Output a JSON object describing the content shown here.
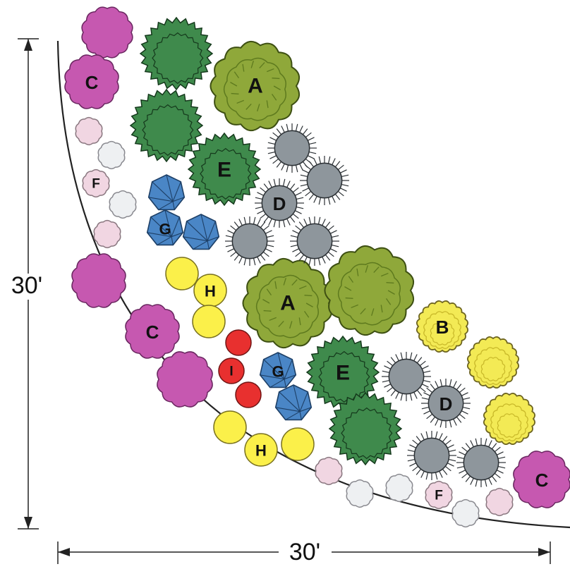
{
  "dimensions": {
    "height_label": "30'",
    "width_label": "30'"
  },
  "plant_types": {
    "A": {
      "shape": "lobed-large",
      "fill": "#8fa83a",
      "stroke": "#3d4f12",
      "detail": "#5e7a1e"
    },
    "B": {
      "shape": "bumpy",
      "fill": "#f3ea55",
      "stroke": "#6d6420",
      "detail": "#c9b92a"
    },
    "C": {
      "shape": "scalloped",
      "fill": "#c658b0",
      "stroke": "#6a2760",
      "detail": "#c658b0"
    },
    "D": {
      "shape": "spiky-gray",
      "fill": "#8e969c",
      "stroke": "#2b3034",
      "detail": "#2b3034"
    },
    "E": {
      "shape": "spiky-green",
      "fill": "#3f8a4c",
      "stroke": "#15391c",
      "detail": "#15391c"
    },
    "F": {
      "shape": "scalloped-small",
      "fill": "#f1d6e2",
      "stroke": "#8a7880",
      "detail": "#f1d6e2"
    },
    "F2": {
      "shape": "scalloped-small",
      "fill": "#eef0f2",
      "stroke": "#8a8a90",
      "detail": "#eef0f2"
    },
    "G": {
      "shape": "heptagon",
      "fill": "#4a86c6",
      "stroke": "#1d3f66",
      "detail": "#1d3f66"
    },
    "H": {
      "shape": "round-yellow",
      "fill": "#fbf04a",
      "stroke": "#7a7220",
      "detail": "#fbf04a"
    },
    "I": {
      "shape": "round-red",
      "fill": "#e8302f",
      "stroke": "#701414",
      "detail": "#e8302f"
    }
  },
  "plants": [
    {
      "type": "C",
      "label": ""
    },
    {
      "type": "C",
      "label": "C"
    },
    {
      "type": "C",
      "label": ""
    },
    {
      "type": "C",
      "label": "C"
    },
    {
      "type": "C",
      "label": ""
    },
    {
      "type": "C",
      "label": "C"
    },
    {
      "type": "E",
      "label": ""
    },
    {
      "type": "E",
      "label": ""
    },
    {
      "type": "E",
      "label": "E"
    },
    {
      "type": "E",
      "label": "E"
    },
    {
      "type": "E",
      "label": ""
    },
    {
      "type": "A",
      "label": "A"
    },
    {
      "type": "A",
      "label": "A"
    },
    {
      "type": "A",
      "label": ""
    },
    {
      "type": "D",
      "label": ""
    },
    {
      "type": "D",
      "label": ""
    },
    {
      "type": "D",
      "label": "D"
    },
    {
      "type": "D",
      "label": ""
    },
    {
      "type": "D",
      "label": ""
    },
    {
      "type": "D",
      "label": ""
    },
    {
      "type": "D",
      "label": "D"
    },
    {
      "type": "D",
      "label": ""
    },
    {
      "type": "D",
      "label": ""
    },
    {
      "type": "B",
      "label": "B"
    },
    {
      "type": "B",
      "label": ""
    },
    {
      "type": "B",
      "label": ""
    },
    {
      "type": "F",
      "label": ""
    },
    {
      "type": "F2",
      "label": ""
    },
    {
      "type": "F",
      "label": "F"
    },
    {
      "type": "F2",
      "label": ""
    },
    {
      "type": "F",
      "label": ""
    },
    {
      "type": "F",
      "label": ""
    },
    {
      "type": "F2",
      "label": ""
    },
    {
      "type": "F2",
      "label": ""
    },
    {
      "type": "F",
      "label": "F"
    },
    {
      "type": "F2",
      "label": ""
    },
    {
      "type": "F",
      "label": ""
    },
    {
      "type": "G",
      "label": ""
    },
    {
      "type": "G",
      "label": "G"
    },
    {
      "type": "G",
      "label": ""
    },
    {
      "type": "G",
      "label": "G"
    },
    {
      "type": "G",
      "label": ""
    },
    {
      "type": "H",
      "label": ""
    },
    {
      "type": "H",
      "label": "H"
    },
    {
      "type": "H",
      "label": ""
    },
    {
      "type": "H",
      "label": ""
    },
    {
      "type": "H",
      "label": "H"
    },
    {
      "type": "H",
      "label": ""
    },
    {
      "type": "I",
      "label": ""
    },
    {
      "type": "I",
      "label": "I"
    },
    {
      "type": "I",
      "label": ""
    }
  ]
}
